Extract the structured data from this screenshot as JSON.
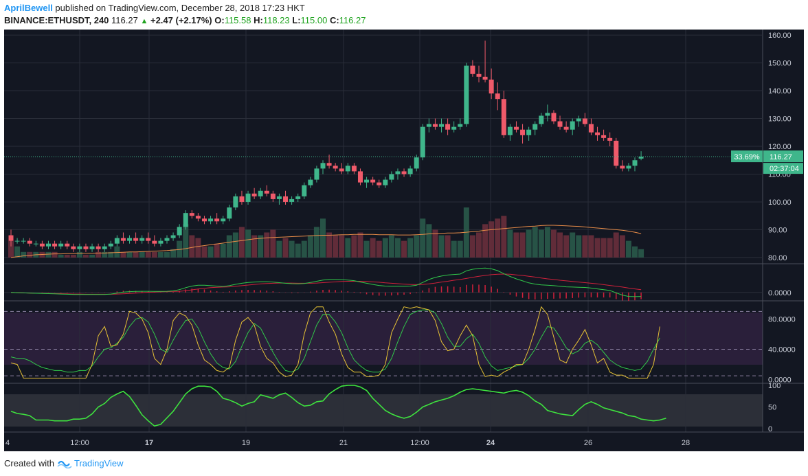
{
  "header": {
    "author": "AprilBewell",
    "published_text": "published on TradingView.com, December 28, 2018 17:23 HKT",
    "symbol": "BINANCE:ETHUSDT, 240",
    "last": "116.27",
    "change": "+2.47 (+2.17%)",
    "o_label": "O:",
    "o_value": "115.58",
    "h_label": "H:",
    "h_value": "118.23",
    "l_label": "L:",
    "l_value": "115.00",
    "c_label": "C:",
    "c_value": "116.27"
  },
  "price_badges": {
    "percent": "33.69%",
    "price": "116.27",
    "countdown": "02:37:04"
  },
  "footer": {
    "created_with": "Created with",
    "brand": "TradingView"
  },
  "colors": {
    "up": "#3fb68b",
    "down": "#f05a6a",
    "background": "#131722",
    "grid": "#2a2e39",
    "ma": "#e88c48",
    "stoch_k": "#e7c335",
    "stoch_d": "#31c84a",
    "macd_signal": "#d0213b",
    "macd_line": "#31c84a"
  },
  "chart_data": [
    {
      "type": "candlestick",
      "title": "",
      "y_ticks": [
        "160.00",
        "150.00",
        "140.00",
        "130.00",
        "120.00",
        "110.00",
        "100.00",
        "90.00",
        "80.00"
      ],
      "ylim": [
        78,
        162
      ],
      "x_ticks": [
        "4",
        "12:00",
        "17",
        "19",
        "21",
        "12:00",
        "24",
        "26",
        "28"
      ],
      "current_price": 116.27,
      "candles": [
        [
          88,
          90,
          84,
          86
        ],
        [
          86,
          87,
          85,
          86
        ],
        [
          86,
          87,
          85,
          86
        ],
        [
          86,
          87,
          84,
          85
        ],
        [
          85,
          86,
          84,
          85
        ],
        [
          85,
          86,
          83,
          84
        ],
        [
          84,
          86,
          83,
          85
        ],
        [
          85,
          86,
          83,
          84
        ],
        [
          84,
          86,
          83,
          85
        ],
        [
          85,
          86,
          83,
          84
        ],
        [
          84,
          85,
          82,
          83
        ],
        [
          83,
          85,
          82,
          84
        ],
        [
          84,
          85,
          82,
          83
        ],
        [
          83,
          85,
          82,
          84
        ],
        [
          84,
          85,
          82,
          83
        ],
        [
          83,
          85,
          82,
          84
        ],
        [
          84,
          86,
          83,
          85
        ],
        [
          85,
          88,
          84,
          87
        ],
        [
          87,
          89,
          85,
          86
        ],
        [
          86,
          88,
          85,
          87
        ],
        [
          87,
          89,
          85,
          86
        ],
        [
          86,
          88,
          85,
          87
        ],
        [
          87,
          89,
          85,
          86
        ],
        [
          86,
          88,
          84,
          85
        ],
        [
          85,
          87,
          84,
          86
        ],
        [
          86,
          88,
          85,
          87
        ],
        [
          87,
          89,
          86,
          88
        ],
        [
          88,
          92,
          87,
          91
        ],
        [
          91,
          97,
          90,
          96
        ],
        [
          96,
          97,
          94,
          95
        ],
        [
          95,
          96,
          93,
          94
        ],
        [
          94,
          95,
          92,
          93
        ],
        [
          93,
          95,
          92,
          94
        ],
        [
          94,
          96,
          92,
          93
        ],
        [
          93,
          95,
          92,
          94
        ],
        [
          94,
          99,
          93,
          98
        ],
        [
          98,
          103,
          97,
          102
        ],
        [
          102,
          104,
          99,
          100
        ],
        [
          100,
          104,
          99,
          103
        ],
        [
          103,
          105,
          101,
          102
        ],
        [
          102,
          105,
          101,
          104
        ],
        [
          104,
          106,
          102,
          103
        ],
        [
          103,
          104,
          100,
          101
        ],
        [
          101,
          103,
          99,
          102
        ],
        [
          102,
          104,
          99,
          100
        ],
        [
          100,
          102,
          99,
          101
        ],
        [
          101,
          103,
          100,
          102
        ],
        [
          102,
          107,
          101,
          106
        ],
        [
          106,
          109,
          105,
          108
        ],
        [
          108,
          113,
          107,
          112
        ],
        [
          112,
          115,
          110,
          114
        ],
        [
          114,
          117,
          112,
          113
        ],
        [
          113,
          114,
          111,
          112
        ],
        [
          112,
          114,
          110,
          111
        ],
        [
          111,
          114,
          110,
          113
        ],
        [
          113,
          114,
          110,
          111
        ],
        [
          111,
          112,
          106,
          107
        ],
        [
          107,
          109,
          105,
          108
        ],
        [
          108,
          109,
          106,
          107
        ],
        [
          107,
          108,
          105,
          106
        ],
        [
          106,
          109,
          105,
          108
        ],
        [
          108,
          111,
          107,
          110
        ],
        [
          110,
          112,
          108,
          111
        ],
        [
          111,
          112,
          109,
          110
        ],
        [
          110,
          113,
          109,
          112
        ],
        [
          112,
          117,
          111,
          116
        ],
        [
          116,
          128,
          115,
          127
        ],
        [
          127,
          130,
          125,
          128
        ],
        [
          128,
          130,
          126,
          127
        ],
        [
          127,
          130,
          125,
          128
        ],
        [
          128,
          130,
          124,
          126
        ],
        [
          126,
          129,
          125,
          127
        ],
        [
          127,
          130,
          126,
          128
        ],
        [
          128,
          150,
          127,
          149
        ],
        [
          149,
          151,
          145,
          146
        ],
        [
          146,
          149,
          143,
          145
        ],
        [
          145,
          158,
          143,
          144
        ],
        [
          144,
          148,
          137,
          139
        ],
        [
          139,
          143,
          133,
          137
        ],
        [
          137,
          140,
          123,
          124
        ],
        [
          124,
          128,
          122,
          127
        ],
        [
          127,
          129,
          125,
          126
        ],
        [
          126,
          128,
          121,
          124
        ],
        [
          124,
          127,
          122,
          126
        ],
        [
          126,
          129,
          124,
          128
        ],
        [
          128,
          132,
          127,
          131
        ],
        [
          131,
          135,
          129,
          132
        ],
        [
          132,
          133,
          128,
          129
        ],
        [
          129,
          131,
          126,
          127
        ],
        [
          127,
          129,
          125,
          126
        ],
        [
          126,
          130,
          124,
          129
        ],
        [
          129,
          131,
          127,
          130
        ],
        [
          130,
          132,
          127,
          128
        ],
        [
          128,
          130,
          124,
          125
        ],
        [
          125,
          127,
          122,
          124
        ],
        [
          124,
          126,
          122,
          123
        ],
        [
          123,
          125,
          120,
          122
        ],
        [
          122,
          123,
          112,
          113
        ],
        [
          113,
          115,
          111,
          112
        ],
        [
          112,
          114,
          111,
          113
        ],
        [
          113,
          116,
          111,
          115
        ],
        [
          115.58,
          118.23,
          115,
          116.27
        ]
      ],
      "volume_ma": [
        80,
        80.3,
        80.6,
        80.8,
        81,
        81.1,
        81.2,
        81.3,
        81.3,
        81.4,
        81.4,
        81.5,
        81.5,
        81.5,
        81.6,
        81.6,
        81.7,
        81.8,
        81.9,
        82,
        82,
        82.1,
        82.2,
        82.3,
        82.4,
        82.5,
        82.7,
        82.9,
        83.2,
        83.6,
        84,
        84.3,
        84.6,
        84.9,
        85.2,
        85.5,
        85.8,
        86.1,
        86.4,
        86.7,
        86.9,
        87.1,
        87.2,
        87.3,
        87.4,
        87.5,
        87.6,
        87.7,
        87.8,
        87.9,
        88,
        88,
        88.1,
        88.2,
        88.2,
        88.3,
        88.3,
        88.3,
        88.3,
        88.2,
        88.2,
        88.2,
        88.1,
        88.1,
        88.1,
        88.2,
        88.3,
        88.5,
        88.6,
        88.7,
        88.8,
        88.8,
        88.9,
        89.1,
        89.3,
        89.5,
        89.8,
        90,
        90.2,
        90.4,
        90.6,
        90.8,
        91,
        91.2,
        91.3,
        91.5,
        91.6,
        91.6,
        91.5,
        91.4,
        91.3,
        91.2,
        91,
        90.8,
        90.6,
        90.4,
        90.2,
        90,
        89.8,
        89.5,
        89.1,
        88.6
      ],
      "volume": [
        86,
        84,
        82,
        82,
        82,
        82,
        82,
        82,
        81,
        81,
        81,
        82,
        81,
        81,
        82,
        82,
        82,
        84,
        82,
        82,
        82,
        82,
        82,
        82,
        82,
        82,
        83,
        86,
        92,
        88,
        87,
        84,
        84,
        85,
        85,
        88,
        89,
        91,
        90,
        88,
        88,
        89,
        90,
        86,
        87,
        86,
        85,
        86,
        88,
        91,
        94,
        89,
        88,
        88,
        87,
        88,
        89,
        86,
        87,
        86,
        87,
        88,
        87,
        86,
        87,
        88,
        94,
        92,
        90,
        88,
        88,
        86,
        86,
        98,
        88,
        89,
        92,
        93,
        94,
        95,
        90,
        89,
        89,
        90,
        91,
        90,
        91,
        90,
        89,
        88,
        89,
        88,
        88,
        88,
        87,
        87,
        87,
        89,
        88,
        86,
        84,
        83
      ]
    },
    {
      "type": "line",
      "title": "",
      "y_ticks": [
        "0.0000"
      ],
      "macd": [
        0,
        -0.1,
        -0.2,
        -0.3,
        -0.4,
        -0.5,
        -0.6,
        -0.7,
        -0.8,
        -0.9,
        -1,
        -1,
        -1,
        -1,
        -1,
        -1,
        -0.8,
        -0.3,
        0.2,
        0.4,
        0.5,
        0.6,
        0.6,
        0.5,
        0.5,
        0.6,
        0.8,
        1.4,
        2.4,
        3.2,
        3.6,
        3.6,
        3.4,
        3.2,
        3.0,
        3.4,
        4.1,
        4.6,
        5.0,
        5.2,
        5.4,
        5.4,
        5.2,
        4.9,
        4.6,
        4.4,
        4.3,
        4.5,
        5.0,
        5.6,
        6.2,
        6.5,
        6.5,
        6.4,
        6.2,
        5.9,
        5.2,
        4.6,
        4.0,
        3.5,
        3.2,
        3.1,
        3.1,
        3.1,
        3.2,
        3.6,
        5.0,
        6.5,
        7.5,
        8.2,
        8.7,
        9.0,
        9.2,
        10.8,
        11.6,
        12.0,
        12.2,
        11.8,
        10.9,
        9.4,
        8.0,
        6.8,
        5.8,
        4.8,
        4.2,
        3.8,
        3.6,
        3.4,
        3.1,
        2.8,
        2.7,
        2.6,
        2.5,
        2.2,
        1.8,
        1.4,
        1.0,
        -0.2,
        -1.3,
        -2.0,
        -2.1,
        -2.0
      ],
      "signal": [
        0,
        -0.1,
        -0.2,
        -0.3,
        -0.4,
        -0.4,
        -0.5,
        -0.6,
        -0.6,
        -0.7,
        -0.8,
        -0.8,
        -0.9,
        -0.9,
        -0.9,
        -0.9,
        -0.9,
        -0.8,
        -0.7,
        -0.5,
        -0.3,
        -0.1,
        0.1,
        0.2,
        0.3,
        0.4,
        0.5,
        0.6,
        0.9,
        1.3,
        1.7,
        2.1,
        2.4,
        2.6,
        2.7,
        2.8,
        3.1,
        3.4,
        3.7,
        4.0,
        4.3,
        4.5,
        4.6,
        4.7,
        4.7,
        4.7,
        4.6,
        4.6,
        4.6,
        4.7,
        4.9,
        5.1,
        5.3,
        5.5,
        5.6,
        5.6,
        5.6,
        5.5,
        5.3,
        5.1,
        4.8,
        4.6,
        4.4,
        4.2,
        4.0,
        3.9,
        4.0,
        4.3,
        4.7,
        5.2,
        5.6,
        6.1,
        6.5,
        7.0,
        7.6,
        8.1,
        8.5,
        8.9,
        9.1,
        9.2,
        9.1,
        8.8,
        8.5,
        8.1,
        7.7,
        7.2,
        6.8,
        6.5,
        6.1,
        5.8,
        5.5,
        5.2,
        4.9,
        4.6,
        4.3,
        3.9,
        3.5,
        3.1,
        2.7,
        2.2,
        1.8,
        1.4
      ],
      "ylim": [
        -3.5,
        14
      ]
    },
    {
      "type": "line",
      "title": "",
      "y_ticks": [
        "80.0000",
        "40.0000",
        "0.0000"
      ],
      "ylim": [
        -3,
        103
      ],
      "k": [
        22,
        20,
        2,
        2,
        2,
        2,
        2,
        2,
        2,
        2,
        2,
        2,
        2,
        20,
        58,
        70,
        44,
        46,
        60,
        90,
        88,
        80,
        62,
        28,
        20,
        40,
        78,
        88,
        84,
        72,
        46,
        26,
        20,
        12,
        10,
        16,
        52,
        76,
        82,
        72,
        44,
        28,
        22,
        10,
        4,
        6,
        20,
        60,
        88,
        96,
        96,
        76,
        60,
        34,
        16,
        10,
        10,
        4,
        4,
        6,
        20,
        62,
        80,
        96,
        94,
        96,
        94,
        92,
        78,
        50,
        38,
        40,
        58,
        72,
        58,
        20,
        4,
        6,
        4,
        10,
        14,
        20,
        20,
        40,
        66,
        96,
        86,
        56,
        26,
        22,
        40,
        52,
        66,
        46,
        22,
        28,
        10,
        6,
        6,
        2,
        2,
        2,
        2,
        20,
        70
      ],
      "d": [
        30,
        28,
        28,
        25,
        20,
        16,
        14,
        12,
        12,
        10,
        10,
        12,
        12,
        18,
        30,
        40,
        42,
        48,
        56,
        70,
        80,
        82,
        76,
        60,
        40,
        36,
        52,
        66,
        78,
        80,
        68,
        50,
        34,
        22,
        16,
        14,
        24,
        44,
        62,
        74,
        68,
        52,
        36,
        22,
        12,
        10,
        14,
        28,
        50,
        72,
        86,
        86,
        76,
        62,
        42,
        26,
        18,
        12,
        10,
        10,
        14,
        28,
        50,
        70,
        86,
        90,
        92,
        92,
        88,
        74,
        56,
        44,
        44,
        54,
        60,
        48,
        30,
        18,
        12,
        14,
        16,
        18,
        20,
        28,
        40,
        56,
        70,
        68,
        56,
        42,
        34,
        38,
        48,
        52,
        46,
        36,
        26,
        20,
        16,
        14,
        12,
        14,
        24,
        40,
        55
      ]
    },
    {
      "type": "line",
      "title": "",
      "y_ticks": [
        "100",
        "50",
        "0"
      ],
      "ylim": [
        -3,
        103
      ],
      "series": [
        {
          "values": [
            40,
            35,
            33,
            30,
            20,
            20,
            20,
            18,
            18,
            18,
            22,
            22,
            24,
            34,
            50,
            58,
            72,
            80,
            86,
            74,
            54,
            32,
            18,
            6,
            10,
            25,
            40,
            60,
            80,
            92,
            98,
            98,
            96,
            86,
            70,
            66,
            60,
            52,
            58,
            62,
            78,
            74,
            70,
            78,
            82,
            72,
            60,
            52,
            54,
            62,
            64,
            80,
            90,
            98,
            100,
            100,
            96,
            88,
            70,
            56,
            42,
            34,
            28,
            24,
            28,
            38,
            50,
            56,
            62,
            66,
            70,
            76,
            84,
            90,
            92,
            90,
            88,
            86,
            84,
            82,
            86,
            88,
            84,
            76,
            64,
            56,
            42,
            38,
            34,
            32,
            30,
            44,
            56,
            62,
            56,
            48,
            44,
            40,
            36,
            30,
            28,
            22,
            20,
            18,
            20,
            24
          ]
        }
      ]
    }
  ]
}
